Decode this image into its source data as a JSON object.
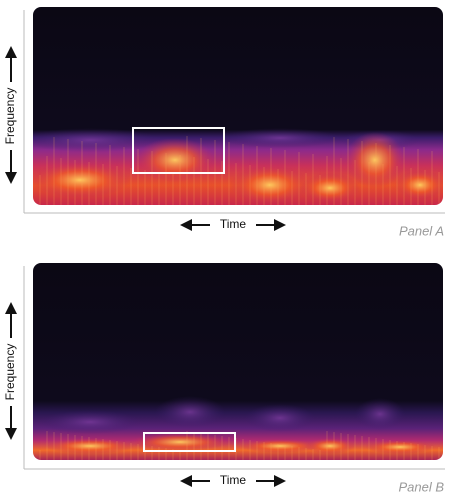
{
  "panels": [
    {
      "y_axis_label": "Frequency",
      "x_axis_label": "Time",
      "panel_label": "Panel A"
    },
    {
      "y_axis_label": "Frequency",
      "x_axis_label": "Time",
      "panel_label": "Panel B"
    }
  ]
}
